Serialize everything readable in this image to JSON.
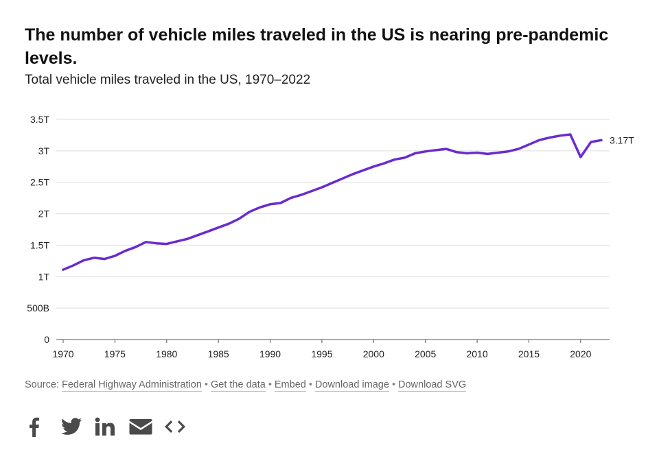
{
  "header": {
    "title": "The number of vehicle miles traveled in the US is nearing pre-pandemic levels.",
    "subtitle": "Total vehicle miles traveled in the US, 1970–2022"
  },
  "chart_data": {
    "type": "line",
    "title": "The number of vehicle miles traveled in the US is nearing pre-pandemic levels.",
    "subtitle": "Total vehicle miles traveled in the US, 1970–2022",
    "xlabel": "",
    "ylabel": "",
    "ylim": [
      0,
      3500000000000
    ],
    "xlim": [
      1970,
      2022
    ],
    "yticks": [
      0,
      500000000000,
      1000000000000,
      1500000000000,
      2000000000000,
      2500000000000,
      3000000000000,
      3500000000000
    ],
    "ytick_labels": [
      "0",
      "500B",
      "1T",
      "1.5T",
      "2T",
      "2.5T",
      "3T",
      "3.5T"
    ],
    "xticks": [
      1970,
      1975,
      1980,
      1985,
      1990,
      1995,
      2000,
      2005,
      2010,
      2015,
      2020
    ],
    "xtick_labels": [
      "1970",
      "1975",
      "1980",
      "1985",
      "1990",
      "1995",
      "2000",
      "2005",
      "2010",
      "2015",
      "2020"
    ],
    "grid": true,
    "line_color": "#6a2bd0",
    "end_label": "3.17T",
    "series": [
      {
        "name": "Total vehicle miles traveled",
        "x": [
          1970,
          1971,
          1972,
          1973,
          1974,
          1975,
          1976,
          1977,
          1978,
          1979,
          1980,
          1981,
          1982,
          1983,
          1984,
          1985,
          1986,
          1987,
          1988,
          1989,
          1990,
          1991,
          1992,
          1993,
          1994,
          1995,
          1996,
          1997,
          1998,
          1999,
          2000,
          2001,
          2002,
          2003,
          2004,
          2005,
          2006,
          2007,
          2008,
          2009,
          2010,
          2011,
          2012,
          2013,
          2014,
          2015,
          2016,
          2017,
          2018,
          2019,
          2020,
          2021,
          2022
        ],
        "values": [
          1110000000000,
          1180000000000,
          1260000000000,
          1300000000000,
          1280000000000,
          1330000000000,
          1410000000000,
          1470000000000,
          1550000000000,
          1530000000000,
          1520000000000,
          1560000000000,
          1600000000000,
          1660000000000,
          1720000000000,
          1780000000000,
          1840000000000,
          1920000000000,
          2030000000000,
          2100000000000,
          2150000000000,
          2170000000000,
          2250000000000,
          2300000000000,
          2360000000000,
          2420000000000,
          2490000000000,
          2560000000000,
          2630000000000,
          2690000000000,
          2750000000000,
          2800000000000,
          2860000000000,
          2890000000000,
          2960000000000,
          2990000000000,
          3010000000000,
          3030000000000,
          2980000000000,
          2960000000000,
          2970000000000,
          2950000000000,
          2970000000000,
          2990000000000,
          3030000000000,
          3100000000000,
          3170000000000,
          3210000000000,
          3240000000000,
          3260000000000,
          2900000000000,
          3140000000000,
          3170000000000
        ]
      }
    ]
  },
  "footer": {
    "source_prefix": "Source:",
    "links": [
      "Federal Highway Administration",
      "Get the data",
      "Embed",
      "Download image",
      "Download SVG"
    ],
    "separator": "•"
  },
  "share": {
    "icons": [
      "facebook-icon",
      "twitter-icon",
      "linkedin-icon",
      "email-icon",
      "embed-code-icon"
    ]
  }
}
